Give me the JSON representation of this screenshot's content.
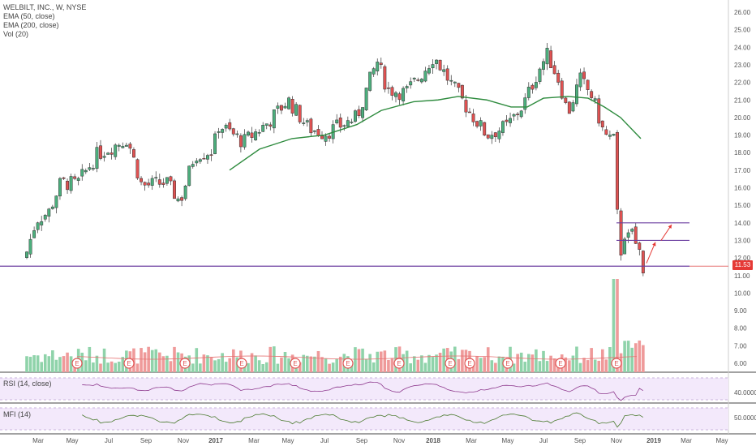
{
  "title": "WELBILT, INC., W, NYSE",
  "indicators": [
    "EMA (50, close)",
    "EMA (200, close)",
    "Vol (20)"
  ],
  "rsi_label": "RSI (14, close)",
  "mfi_label": "MFI (14)",
  "last_price": "11.53",
  "colors": {
    "up": "#4caf7d",
    "down": "#e05252",
    "ema": "#2e8b3e",
    "line": "#6b3fa0"
  },
  "chart_data": {
    "type": "candlestick",
    "price_axis": [
      "26.00",
      "25.00",
      "24.00",
      "23.00",
      "22.00",
      "21.00",
      "20.00",
      "19.00",
      "18.00",
      "17.00",
      "16.00",
      "15.00",
      "14.00",
      "13.00",
      "12.00",
      "11.00",
      "10.00",
      "9.00",
      "8.00",
      "7.00",
      "6.00"
    ],
    "rsi_axis": [
      "40.0000"
    ],
    "mfi_axis": [
      "50.0000"
    ],
    "x_ticks": [
      "Mar",
      "May",
      "Jul",
      "Sep",
      "Nov",
      "2017",
      "Mar",
      "May",
      "Jul",
      "Sep",
      "Nov",
      "2018",
      "Mar",
      "May",
      "Jul",
      "Sep",
      "Nov",
      "2019",
      "Mar",
      "May"
    ],
    "earnings_markers": [
      "E",
      "E",
      "E",
      "E",
      "E",
      "E",
      "E",
      "E",
      "E",
      "E",
      "E",
      "E"
    ],
    "support_level": 11.53,
    "range_box": {
      "top": 14.0,
      "bottom": 13.0
    },
    "key_points": [
      {
        "date": "Feb 2016",
        "price": 12.2
      },
      {
        "date": "Jun 2016",
        "price": 18.5
      },
      {
        "date": "Nov 2016",
        "price": 15.3
      },
      {
        "date": "Sep 2017",
        "price": 23.2
      },
      {
        "date": "Jan 2018",
        "price": 23.5
      },
      {
        "date": "Jun 2018",
        "price": 23.6
      },
      {
        "date": "Oct 2018",
        "price": 19.2
      },
      {
        "date": "Nov 2018",
        "price": 13.8
      },
      {
        "date": "Dec 2018",
        "price": 11.53
      }
    ]
  }
}
